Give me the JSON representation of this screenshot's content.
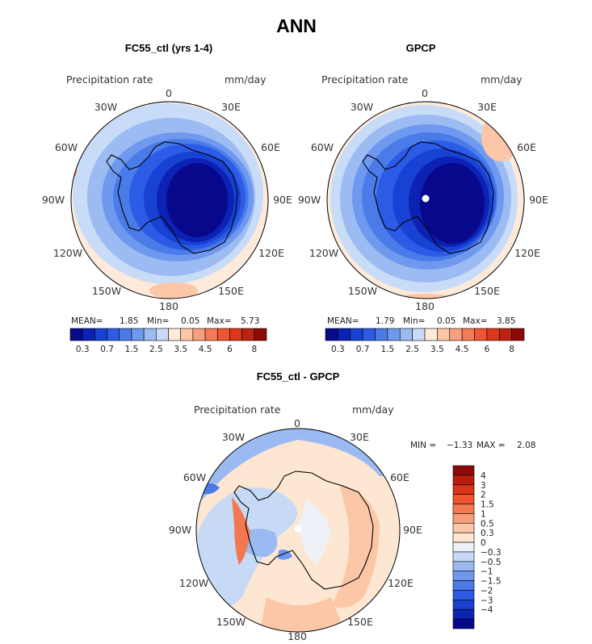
{
  "title": "ANN",
  "panels": [
    {
      "id": "model",
      "title": "FC55_ctl (yrs 1-4)",
      "variable": "Precipitation rate",
      "units": "mm/day",
      "stats": {
        "mean_label": "MEAN=",
        "mean": "1.85",
        "min_label": "Min=",
        "min": "0.05",
        "max_label": "Max=",
        "max": "5.73"
      },
      "longitude_labels": [
        "0",
        "30E",
        "60E",
        "90E",
        "120E",
        "150E",
        "180",
        "150W",
        "120W",
        "90W",
        "60W",
        "30W"
      ]
    },
    {
      "id": "obs",
      "title": "GPCP",
      "variable": "Precipitation rate",
      "units": "mm/day",
      "stats": {
        "mean_label": "MEAN=",
        "mean": "1.79",
        "min_label": "Min=",
        "min": "0.05",
        "max_label": "Max=",
        "max": "3.85"
      },
      "longitude_labels": [
        "0",
        "30E",
        "60E",
        "90E",
        "120E",
        "150E",
        "180",
        "150W",
        "120W",
        "90W",
        "60W",
        "30W"
      ]
    },
    {
      "id": "diff",
      "title": "FC55_ctl - GPCP",
      "variable": "Precipitation rate",
      "units": "mm/day",
      "stats": {
        "min_label": "MIN =",
        "min": "−1.33",
        "max_label": "MAX =",
        "max": "2.08"
      },
      "longitude_labels": [
        "0",
        "30E",
        "60E",
        "90E",
        "120E",
        "150E",
        "180",
        "150W",
        "120W",
        "90W",
        "60W",
        "30W"
      ]
    }
  ],
  "colorbar_abs": {
    "colors": [
      "#08088c",
      "#0c22b4",
      "#1842d4",
      "#2c5ce6",
      "#4a7be9",
      "#6f99ee",
      "#9bbbf2",
      "#c9dcf7",
      "#fdeadb",
      "#fcc6a9",
      "#f8a07e",
      "#f47a55",
      "#ee5530",
      "#db3718",
      "#bc220f",
      "#8c0a07"
    ],
    "tick_labels": [
      "0.3",
      "0.7",
      "1.5",
      "2.5",
      "3.5",
      "4.5",
      "6",
      "8"
    ]
  },
  "colorbar_diff": {
    "colors": [
      "#8c0a07",
      "#b81d0c",
      "#d83417",
      "#ee5530",
      "#f4784f",
      "#f89e78",
      "#fcc7a7",
      "#fde7d3",
      "#eef2f8",
      "#c7daf5",
      "#9abaf1",
      "#6f97ed",
      "#4a79e8",
      "#2c5be4",
      "#1a40cf",
      "#0c24b2",
      "#08088c"
    ],
    "tick_labels": [
      "4",
      "3",
      "2",
      "1.5",
      "1",
      "0.5",
      "0.3",
      "0",
      "−0.3",
      "−0.5",
      "−1",
      "−1.5",
      "−2",
      "−3",
      "−4"
    ]
  },
  "colors": {
    "land_outline": "#000000",
    "frame": "#000000",
    "pole_marker": "#ffffff"
  }
}
